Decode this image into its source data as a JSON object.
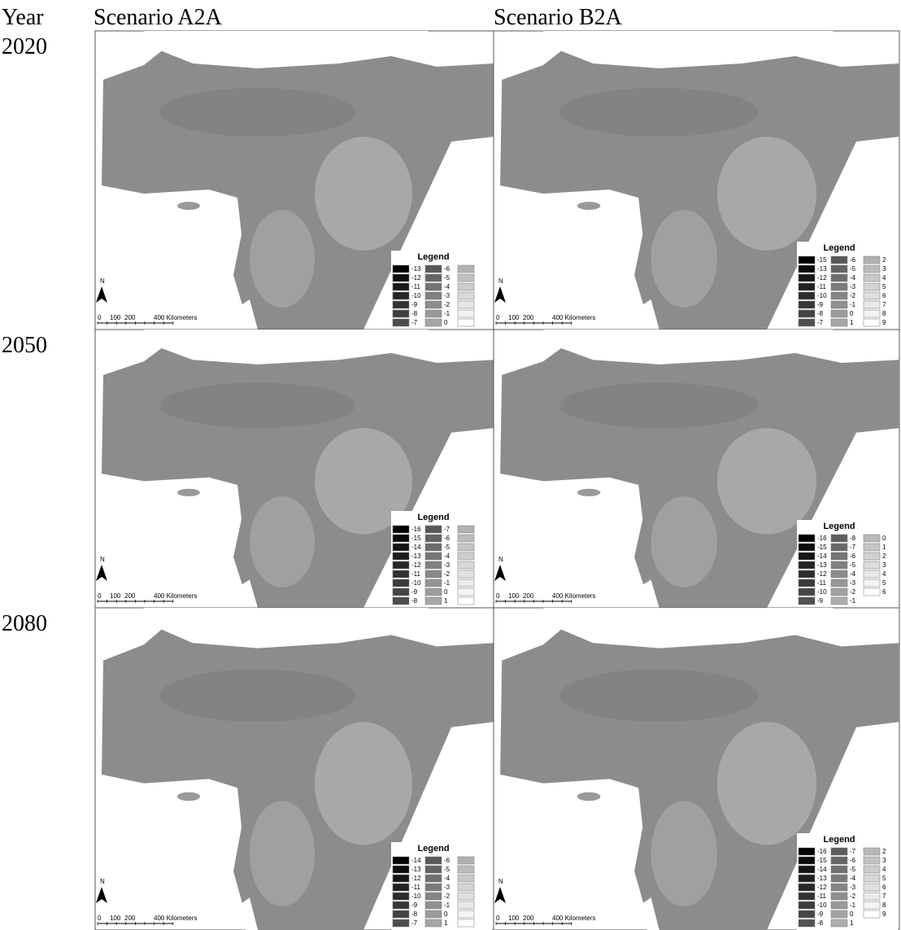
{
  "header": {
    "year": "Year",
    "columns": [
      "Scenario A2A",
      "Scenario B2A"
    ]
  },
  "map_labels": {
    "north": "N",
    "scale": [
      "0",
      "100",
      "200",
      "400 Kilometers"
    ]
  },
  "rows": [
    {
      "year": "2020",
      "panels": [
        {
          "legend_title": "Legend",
          "legend": [
            [
              -13,
              -12,
              -11,
              -10,
              -9,
              -8,
              -7
            ],
            [
              -6,
              -5,
              -4,
              -3,
              -2,
              -1,
              0
            ]
          ]
        },
        {
          "legend_title": "Legend",
          "legend": [
            [
              -15,
              -13,
              -12,
              -11,
              -10,
              -9,
              -8,
              -7
            ],
            [
              -6,
              -5,
              -4,
              -3,
              -2,
              -1,
              0,
              1
            ],
            [
              2,
              3,
              4,
              5,
              6,
              7,
              8,
              9
            ]
          ]
        }
      ]
    },
    {
      "year": "2050",
      "panels": [
        {
          "legend_title": "Legend",
          "legend": [
            [
              -16,
              -15,
              -14,
              -13,
              -12,
              -11,
              -10,
              -9,
              -8
            ],
            [
              -7,
              -6,
              -5,
              -4,
              -3,
              -2,
              -1,
              0,
              1
            ]
          ]
        },
        {
          "legend_title": "Legend",
          "legend": [
            [
              -16,
              -15,
              -14,
              -13,
              -12,
              -11,
              -10,
              -9
            ],
            [
              -8,
              -7,
              -6,
              -5,
              -4,
              -3,
              -2,
              -1
            ],
            [
              0,
              1,
              2,
              3,
              4,
              5,
              6
            ]
          ]
        }
      ]
    },
    {
      "year": "2080",
      "panels": [
        {
          "legend_title": "Legend",
          "legend": [
            [
              -14,
              -13,
              -12,
              -11,
              -10,
              -9,
              -8,
              -7
            ],
            [
              -6,
              -5,
              -4,
              -3,
              -2,
              -1,
              0,
              1
            ]
          ]
        },
        {
          "legend_title": "Legend",
          "legend": [
            [
              -16,
              -15,
              -14,
              -13,
              -12,
              -11,
              -10,
              -9,
              -8
            ],
            [
              -7,
              -6,
              -5,
              -4,
              -3,
              -2,
              -1,
              0,
              1
            ],
            [
              2,
              3,
              4,
              5,
              6,
              7,
              8,
              9
            ]
          ]
        }
      ]
    }
  ]
}
